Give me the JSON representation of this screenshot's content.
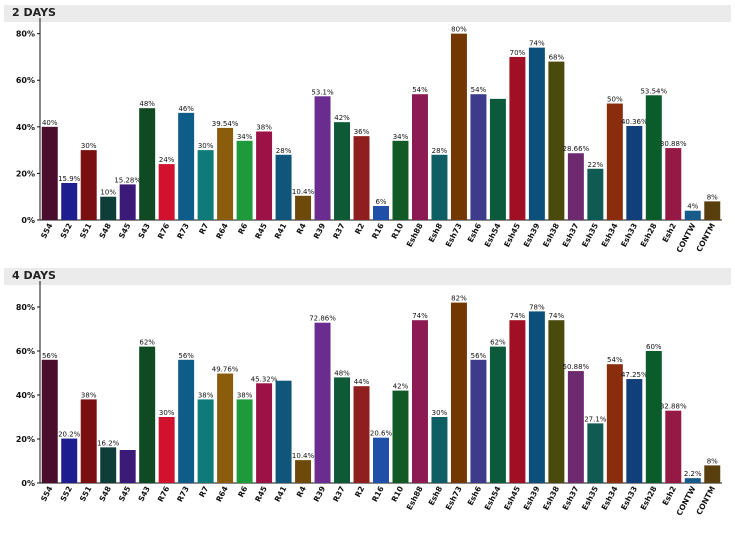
{
  "chart_data": [
    {
      "type": "bar",
      "title": "2 DAYS",
      "ylim": [
        0,
        85
      ],
      "yticks": [
        "0%",
        "20%",
        "40%",
        "60%",
        "80%"
      ],
      "categories": [
        "S54",
        "S52",
        "S51",
        "S48",
        "S45",
        "S43",
        "R76",
        "R73",
        "R7",
        "R64",
        "R6",
        "R45",
        "R41",
        "R4",
        "R39",
        "R37",
        "R2",
        "R16",
        "R10",
        "Esh88",
        "Esh8",
        "Esh73",
        "Esh6",
        "Esh54",
        "Esh45",
        "Esh39",
        "Esh38",
        "Esh37",
        "Esh35",
        "Esh34",
        "Esh33",
        "Esh28",
        "Esh2",
        "CONTW",
        "CONTM"
      ],
      "values": [
        40,
        15.9,
        30,
        10,
        15.28,
        48,
        24,
        46,
        30,
        39.54,
        34,
        38,
        28,
        10.4,
        53.1,
        42,
        36,
        6,
        34,
        54,
        28,
        80,
        54,
        52,
        70,
        74,
        68,
        28.66,
        22,
        50,
        40.36,
        53.54,
        30.88,
        4,
        8
      ],
      "labels": [
        "40%",
        "15.9%",
        "30%",
        "10%",
        "15.28%",
        "48%",
        "24%",
        "46%",
        "30%",
        "39.54%",
        "34%",
        "38%",
        "28%",
        "10.4%",
        "53.1%",
        "42%",
        "36%",
        "6%",
        "34%",
        "54%",
        "28%",
        "80%",
        "54%",
        "",
        "70%",
        "74%",
        "68%",
        "28.66%",
        "22%",
        "50%",
        "40.36%",
        "53.54%",
        "30.88%",
        "4%",
        "8%"
      ],
      "colors": [
        "#4a0d2b",
        "#1e1e8f",
        "#7a0f12",
        "#0f3d3a",
        "#3c1a78",
        "#0f4a22",
        "#d2112f",
        "#0e5c8a",
        "#0e7a7a",
        "#8a5c0c",
        "#1f9a3a",
        "#9c1247",
        "#10557a",
        "#6e4a0a",
        "#6a2d8f",
        "#0e5a37",
        "#8f1f1f",
        "#1f4fa8",
        "#125a25",
        "#8c1b54",
        "#0e5f63",
        "#733800",
        "#3e3a8c",
        "#0a5a3b",
        "#a10f24",
        "#0b4f7a",
        "#4a4a0c",
        "#6e2a6e",
        "#0f5a52",
        "#8a2d0c",
        "#113f7a",
        "#0a5c2b",
        "#961945",
        "#185a8a",
        "#5a3f0e"
      ],
      "grid": false
    },
    {
      "type": "bar",
      "title": "4 DAYS",
      "ylim": [
        0,
        90
      ],
      "yticks": [
        "0%",
        "20%",
        "40%",
        "60%",
        "80%"
      ],
      "categories": [
        "S54",
        "S52",
        "S51",
        "S48",
        "S45",
        "S43",
        "R76",
        "R73",
        "R7",
        "R64",
        "R6",
        "R45",
        "R41",
        "R4",
        "R39",
        "R37",
        "R2",
        "R16",
        "R10",
        "Esh88",
        "Esh8",
        "Esh73",
        "Esh6",
        "Esh54",
        "Esh45",
        "Esh39",
        "Esh38",
        "Esh37",
        "Esh35",
        "Esh34",
        "Esh33",
        "Esh28",
        "Esh2",
        "CONTW",
        "CONTM"
      ],
      "values": [
        56,
        20.2,
        38,
        16.2,
        15,
        62,
        30,
        56,
        38,
        49.76,
        38,
        45.32,
        46.5,
        10.4,
        72.86,
        48,
        44,
        20.6,
        42,
        74,
        30,
        82,
        56,
        62,
        74,
        78,
        74,
        50.88,
        27.1,
        54,
        47.25,
        60,
        32.88,
        2.2,
        8
      ],
      "labels": [
        "56%",
        "20.2%",
        "38%",
        "16.2%",
        "",
        "62%",
        "30%",
        "56%",
        "38%",
        "49.76%",
        "38%",
        "45.32%",
        "",
        "10.4%",
        "72.86%",
        "48%",
        "44%",
        "20.6%",
        "42%",
        "74%",
        "30%",
        "82%",
        "56%",
        "62%",
        "74%",
        "78%",
        "74%",
        "50.88%",
        "27.1%",
        "54%",
        "47.25%",
        "60%",
        "32.88%",
        "2.2%",
        "8%"
      ],
      "colors": [
        "#4a0d2b",
        "#1e1e8f",
        "#7a0f12",
        "#0f3d3a",
        "#3c1a78",
        "#0f4a22",
        "#d2112f",
        "#0e5c8a",
        "#0e7a7a",
        "#8a5c0c",
        "#1f9a3a",
        "#9c1247",
        "#10557a",
        "#6e4a0a",
        "#6a2d8f",
        "#0e5a37",
        "#8f1f1f",
        "#1f4fa8",
        "#125a25",
        "#8c1b54",
        "#0e5f63",
        "#733800",
        "#3e3a8c",
        "#0a5a3b",
        "#a10f24",
        "#0b4f7a",
        "#4a4a0c",
        "#6e2a6e",
        "#0f5a52",
        "#8a2d0c",
        "#113f7a",
        "#0a5c2b",
        "#961945",
        "#185a8a",
        "#5a3f0e"
      ],
      "grid": false
    }
  ]
}
